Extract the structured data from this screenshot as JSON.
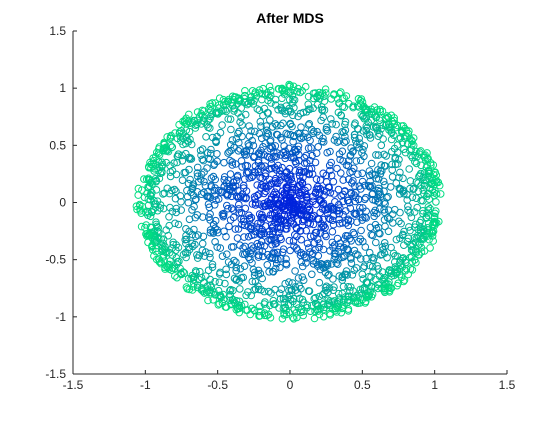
{
  "chart_data": {
    "type": "scatter",
    "title": "After MDS",
    "xlabel": "",
    "ylabel": "",
    "xlim": [
      -1.5,
      1.5
    ],
    "ylim": [
      -1.5,
      1.5
    ],
    "x_ticks": [
      -1.5,
      -1,
      -0.5,
      0,
      0.5,
      1,
      1.5
    ],
    "x_tick_labels": [
      "-1.5",
      "-1",
      "-0.5",
      "0",
      "0.5",
      "1",
      "1.5"
    ],
    "y_ticks": [
      -1.5,
      -1,
      -0.5,
      0,
      0.5,
      1,
      1.5
    ],
    "y_tick_labels": [
      "-1.5",
      "-1",
      "-0.5",
      "0",
      "0.5",
      "1",
      "1.5"
    ],
    "grid": false,
    "legend": "none",
    "marker": "open-circle",
    "colormap": {
      "center": "#0022dd",
      "edge": "#00e080"
    },
    "series": [
      {
        "description": "points roughly filling an ellipse, dense near origin, colored by radius",
        "x_extent": [
          -1.05,
          1.05
        ],
        "y_extent": [
          -1.02,
          1.02
        ],
        "count": 2200
      }
    ]
  }
}
